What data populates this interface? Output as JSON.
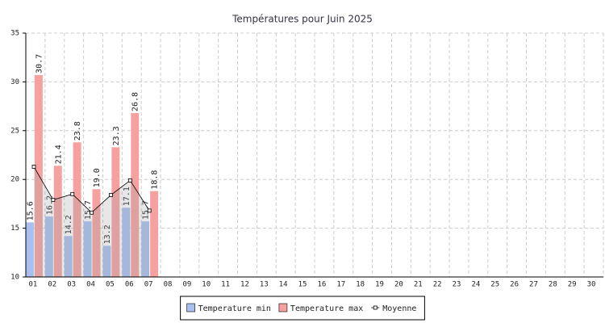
{
  "chart_data": {
    "type": "bar",
    "title": "Températures pour Juin 2025",
    "categories": [
      "01",
      "02",
      "03",
      "04",
      "05",
      "06",
      "07",
      "08",
      "09",
      "10",
      "11",
      "12",
      "13",
      "14",
      "15",
      "16",
      "17",
      "18",
      "19",
      "20",
      "21",
      "22",
      "23",
      "24",
      "25",
      "26",
      "27",
      "28",
      "29",
      "30"
    ],
    "series": [
      {
        "name": "Temperature min",
        "type": "bar",
        "color": "#a8bff0",
        "values": [
          15.6,
          16.2,
          14.2,
          15.7,
          13.2,
          17.1,
          15.7,
          null,
          null,
          null,
          null,
          null,
          null,
          null,
          null,
          null,
          null,
          null,
          null,
          null,
          null,
          null,
          null,
          null,
          null,
          null,
          null,
          null,
          null,
          null
        ]
      },
      {
        "name": "Temperature max",
        "type": "bar",
        "color": "#f6a0a0",
        "values": [
          30.7,
          21.4,
          23.8,
          19.0,
          23.3,
          26.8,
          18.8,
          null,
          null,
          null,
          null,
          null,
          null,
          null,
          null,
          null,
          null,
          null,
          null,
          null,
          null,
          null,
          null,
          null,
          null,
          null,
          null,
          null,
          null,
          null
        ],
        "value_labels": [
          "30.7",
          "21.4",
          "23.8",
          "19.0",
          "23.3",
          "26.8",
          "18.8",
          null,
          null,
          null,
          null,
          null,
          null,
          null,
          null,
          null,
          null,
          null,
          null,
          null,
          null,
          null,
          null,
          null,
          null,
          null,
          null,
          null,
          null,
          null
        ]
      },
      {
        "name": "Moyenne",
        "type": "line",
        "color": "#000000",
        "values": [
          21.3,
          17.9,
          18.5,
          16.6,
          18.4,
          19.9,
          16.8,
          null,
          null,
          null,
          null,
          null,
          null,
          null,
          null,
          null,
          null,
          null,
          null,
          null,
          null,
          null,
          null,
          null,
          null,
          null,
          null,
          null,
          null,
          null
        ]
      }
    ],
    "ylim": [
      10,
      35
    ],
    "yticks": [
      10,
      15,
      20,
      25,
      30,
      35
    ],
    "grid": true
  }
}
